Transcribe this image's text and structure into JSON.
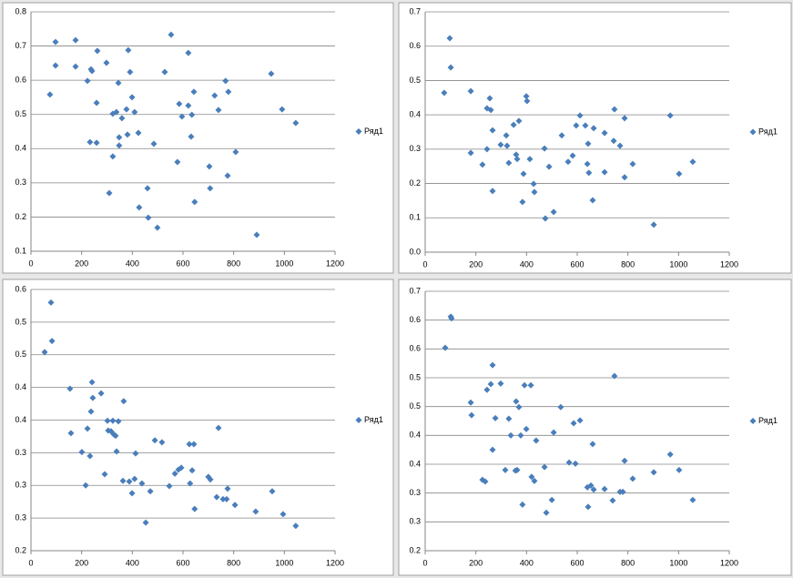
{
  "chart_data": [
    {
      "type": "scatter",
      "xlim": [
        0,
        1200
      ],
      "xticks": [
        0,
        200,
        400,
        600,
        800,
        1000,
        1200
      ],
      "ylim": [
        0.1,
        0.8
      ],
      "yticks": [
        0.1,
        0.2,
        0.3,
        0.4,
        0.5,
        0.6,
        0.7,
        0.8
      ],
      "grid": true,
      "legend": "right",
      "x": [
        75,
        97,
        97,
        176,
        176,
        223,
        233,
        237,
        241,
        259,
        262,
        259,
        298,
        309,
        323,
        323,
        337,
        345,
        348,
        348,
        359,
        377,
        381,
        384,
        391,
        399,
        409,
        424,
        427,
        460,
        463,
        485,
        499,
        528,
        553,
        578,
        585,
        596,
        621,
        621,
        632,
        635,
        643,
        646,
        704,
        707,
        725,
        740,
        768,
        779,
        776,
        808,
        891,
        948,
        991,
        1045
      ],
      "series": [
        {
          "name": "Ряд1",
          "color": "#4a7ebb",
          "values": [
            0.558,
            0.712,
            0.643,
            0.717,
            0.64,
            0.598,
            0.419,
            0.632,
            0.627,
            0.534,
            0.686,
            0.417,
            0.651,
            0.27,
            0.502,
            0.377,
            0.507,
            0.592,
            0.433,
            0.409,
            0.489,
            0.515,
            0.441,
            0.688,
            0.624,
            0.55,
            0.507,
            0.446,
            0.228,
            0.284,
            0.198,
            0.414,
            0.169,
            0.624,
            0.733,
            0.361,
            0.531,
            0.494,
            0.68,
            0.526,
            0.435,
            0.499,
            0.566,
            0.244,
            0.348,
            0.284,
            0.555,
            0.513,
            0.598,
            0.566,
            0.321,
            0.39,
            0.148,
            0.619,
            0.515,
            0.475
          ]
        }
      ]
    },
    {
      "type": "scatter",
      "xlim": [
        0,
        1200
      ],
      "xticks": [
        0,
        200,
        400,
        600,
        800,
        1000,
        1200
      ],
      "ylim": [
        0,
        0.7
      ],
      "yticks": [
        {
          "value": 0,
          "label": "0.0"
        },
        0.1,
        0.2,
        0.3,
        0.4,
        0.5,
        0.6,
        0.7
      ],
      "grid": true,
      "legend": "right",
      "x": [
        75,
        97,
        101,
        180,
        180,
        226,
        244,
        244,
        255,
        259,
        266,
        266,
        298,
        320,
        323,
        330,
        349,
        359,
        363,
        370,
        384,
        388,
        399,
        402,
        413,
        428,
        431,
        471,
        474,
        489,
        507,
        539,
        564,
        582,
        596,
        611,
        632,
        640,
        643,
        646,
        661,
        665,
        708,
        708,
        744,
        747,
        769,
        787,
        787,
        819,
        902,
        967,
        1002,
        1056
      ],
      "series": [
        {
          "name": "Ряд1",
          "color": "#4a7ebb",
          "values": [
            0.464,
            0.623,
            0.538,
            0.469,
            0.289,
            0.255,
            0.3,
            0.419,
            0.448,
            0.414,
            0.355,
            0.178,
            0.313,
            0.34,
            0.31,
            0.26,
            0.371,
            0.284,
            0.271,
            0.382,
            0.146,
            0.228,
            0.454,
            0.44,
            0.271,
            0.199,
            0.175,
            0.302,
            0.098,
            0.249,
            0.117,
            0.34,
            0.263,
            0.281,
            0.369,
            0.398,
            0.369,
            0.257,
            0.316,
            0.231,
            0.151,
            0.361,
            0.347,
            0.233,
            0.324,
            0.416,
            0.31,
            0.39,
            0.218,
            0.257,
            0.08,
            0.398,
            0.228,
            0.263
          ]
        }
      ]
    },
    {
      "type": "scatter",
      "xlim": [
        0,
        1200
      ],
      "xticks": [
        0,
        200,
        400,
        600,
        800,
        1000,
        1200
      ],
      "ylim": [
        0.2,
        0.6
      ],
      "yticks": [
        0.2,
        {
          "value": 0.25,
          "label": "0.3"
        },
        0.3,
        {
          "value": 0.35,
          "label": "0.3"
        },
        0.4,
        {
          "value": 0.45,
          "label": "0.4"
        },
        0.5,
        {
          "value": 0.55,
          "label": "0.5"
        },
        0.6
      ],
      "grid": true,
      "legend": "right",
      "x": [
        54,
        79,
        83,
        154,
        158,
        201,
        216,
        223,
        233,
        237,
        241,
        244,
        277,
        291,
        302,
        305,
        316,
        323,
        327,
        334,
        338,
        345,
        363,
        366,
        388,
        399,
        409,
        413,
        438,
        453,
        471,
        489,
        517,
        546,
        568,
        582,
        593,
        625,
        628,
        636,
        643,
        646,
        700,
        708,
        733,
        740,
        758,
        772,
        776,
        805,
        887,
        952,
        995,
        1045
      ],
      "series": [
        {
          "name": "Ряд1",
          "color": "#4a7ebb",
          "values": [
            0.504,
            0.58,
            0.521,
            0.448,
            0.38,
            0.351,
            0.3,
            0.387,
            0.345,
            0.413,
            0.458,
            0.434,
            0.441,
            0.317,
            0.399,
            0.384,
            0.383,
            0.399,
            0.378,
            0.376,
            0.352,
            0.398,
            0.307,
            0.429,
            0.306,
            0.288,
            0.31,
            0.349,
            0.303,
            0.243,
            0.291,
            0.369,
            0.366,
            0.299,
            0.318,
            0.324,
            0.327,
            0.363,
            0.303,
            0.323,
            0.363,
            0.264,
            0.313,
            0.309,
            0.282,
            0.388,
            0.279,
            0.279,
            0.295,
            0.27,
            0.26,
            0.291,
            0.256,
            0.238
          ]
        }
      ]
    },
    {
      "type": "scatter",
      "xlim": [
        0,
        1200
      ],
      "xticks": [
        0,
        200,
        400,
        600,
        800,
        1000,
        1200
      ],
      "ylim": [
        0.25,
        0.7
      ],
      "yticks": [
        {
          "value": 0.25,
          "label": "0.2"
        },
        0.3,
        {
          "value": 0.35,
          "label": "0.3"
        },
        0.4,
        {
          "value": 0.45,
          "label": "0.4"
        },
        0.5,
        {
          "value": 0.55,
          "label": "0.5"
        },
        0.6,
        {
          "value": 0.65,
          "label": "0.6"
        },
        0.7
      ],
      "grid": true,
      "legend": "right",
      "x": [
        79,
        101,
        104,
        180,
        183,
        226,
        237,
        244,
        259,
        266,
        266,
        277,
        298,
        316,
        330,
        338,
        356,
        359,
        363,
        370,
        377,
        384,
        392,
        399,
        417,
        420,
        431,
        438,
        471,
        478,
        500,
        507,
        535,
        568,
        586,
        593,
        611,
        640,
        643,
        654,
        661,
        665,
        708,
        740,
        747,
        769,
        780,
        787,
        819,
        902,
        967,
        1002,
        1056
      ],
      "series": [
        {
          "name": "Ряд1",
          "color": "#4a7ebb",
          "values": [
            0.602,
            0.656,
            0.653,
            0.507,
            0.485,
            0.373,
            0.37,
            0.529,
            0.539,
            0.572,
            0.425,
            0.48,
            0.54,
            0.39,
            0.479,
            0.45,
            0.389,
            0.509,
            0.39,
            0.499,
            0.45,
            0.33,
            0.537,
            0.461,
            0.537,
            0.378,
            0.371,
            0.441,
            0.395,
            0.316,
            0.338,
            0.455,
            0.499,
            0.403,
            0.471,
            0.401,
            0.476,
            0.36,
            0.326,
            0.363,
            0.435,
            0.356,
            0.357,
            0.337,
            0.553,
            0.352,
            0.352,
            0.406,
            0.375,
            0.386,
            0.417,
            0.39,
            0.338
          ]
        }
      ]
    }
  ]
}
